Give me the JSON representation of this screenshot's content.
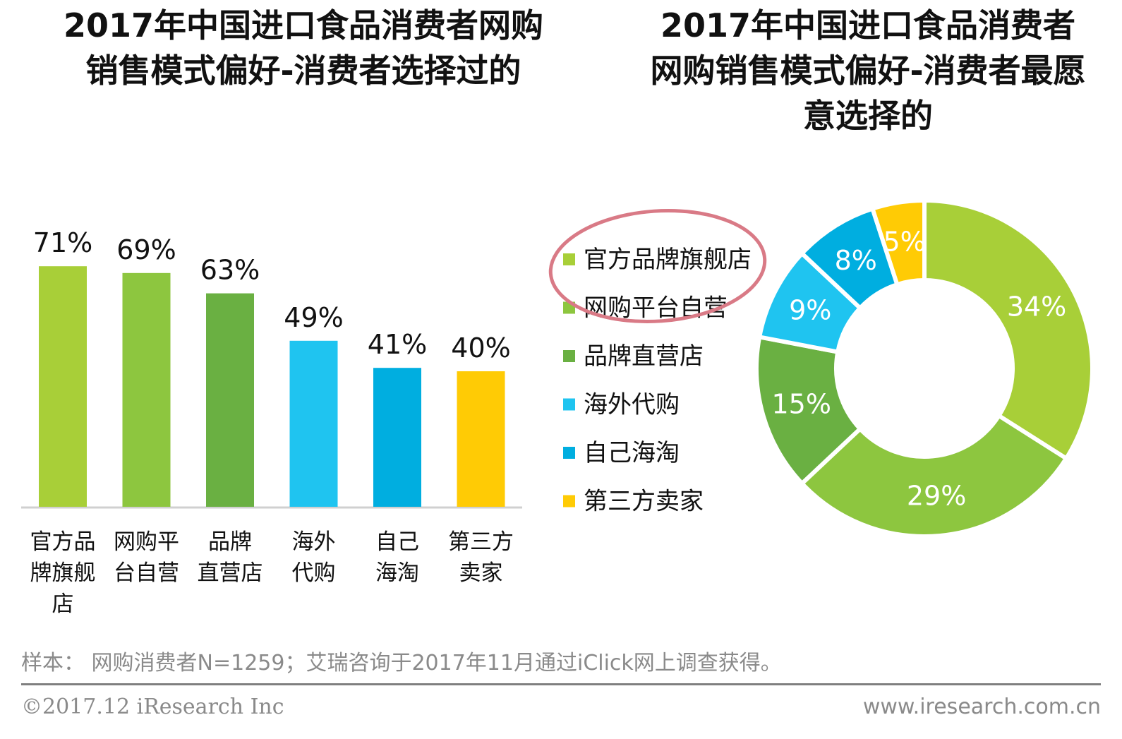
{
  "left_title_line1": "2017年中国进口食品消费者网购",
  "left_title_line2": "销售模式偏好-消费者选择过的",
  "right_title_line1": "2017年中国进口食品消费者",
  "right_title_line2": "网购销售模式偏好-消费者最愿",
  "right_title_line3": "意选择的",
  "footnote": "样本： 网购消费者N=1259；艾瑞咨询于2017年11月通过iClick网上调查获得。",
  "copyright": "©2017.12 iResearch Inc",
  "website": "www.iresearch.com.cn",
  "chart_data": [
    {
      "type": "bar",
      "title": "2017年中国进口食品消费者网购销售模式偏好-消费者选择过的",
      "categories": [
        "官方品牌旗舰店",
        "网购平台自营",
        "品牌直营店",
        "海外代购",
        "自己海淘",
        "第三方卖家"
      ],
      "category_lines": [
        [
          "官方品",
          "牌旗舰",
          "店"
        ],
        [
          "网购平",
          "台自营"
        ],
        [
          "品牌",
          "直营店"
        ],
        [
          "海外",
          "代购"
        ],
        [
          "自己",
          "海淘"
        ],
        [
          "第三方",
          "卖家"
        ]
      ],
      "values": [
        71,
        69,
        63,
        49,
        41,
        40
      ],
      "value_labels": [
        "71%",
        "69%",
        "63%",
        "49%",
        "41%",
        "40%"
      ],
      "colors": [
        "#a8cf38",
        "#8dc63f",
        "#6ab042",
        "#1fc4f0",
        "#00aee0",
        "#ffcb05"
      ],
      "unit": "%",
      "ylim": [
        0,
        100
      ]
    },
    {
      "type": "pie",
      "title": "2017年中国进口食品消费者网购销售模式偏好-消费者最愿意选择的",
      "categories": [
        "官方品牌旗舰店",
        "网购平台自营",
        "品牌直营店",
        "海外代购",
        "自己海淘",
        "第三方卖家"
      ],
      "values": [
        34,
        29,
        15,
        9,
        8,
        5
      ],
      "value_labels": [
        "34%",
        "29%",
        "15%",
        "9%",
        "8%",
        "5%"
      ],
      "colors": [
        "#a8cf38",
        "#8dc63f",
        "#6ab042",
        "#1fc4f0",
        "#00aee0",
        "#ffcb05"
      ],
      "legend": "left",
      "highlighted_legend_items": [
        "官方品牌旗舰店",
        "网购平台自营"
      ]
    }
  ]
}
